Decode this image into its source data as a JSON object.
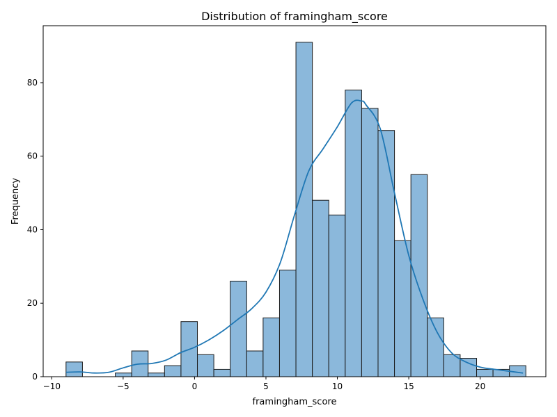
{
  "chart_data": {
    "type": "histogram",
    "title": "Distribution of framingham_score",
    "xlabel": "framingham_score",
    "ylabel": "Frequency",
    "xlim": [
      -10.6,
      24.6
    ],
    "ylim": [
      0,
      95.5
    ],
    "xticks": [
      -10,
      -5,
      0,
      5,
      10,
      15,
      20
    ],
    "yticks": [
      0,
      20,
      40,
      60,
      80
    ],
    "grid": false,
    "bin_edges": [
      -9.0,
      -7.85,
      -6.7,
      -5.55,
      -4.4,
      -3.25,
      -2.1,
      -0.95,
      0.2,
      1.35,
      2.5,
      3.65,
      4.8,
      5.95,
      7.1,
      8.25,
      9.4,
      10.55,
      11.7,
      12.85,
      14.0,
      15.15,
      16.3,
      17.45,
      18.6,
      19.75,
      20.9,
      22.05,
      23.2
    ],
    "counts": [
      4,
      0,
      0,
      1,
      7,
      1,
      3,
      15,
      6,
      2,
      26,
      7,
      16,
      29,
      91,
      48,
      44,
      78,
      73,
      67,
      37,
      55,
      16,
      6,
      5,
      2,
      2,
      3
    ],
    "kde": {
      "x": [
        -9,
        -8,
        -7,
        -6,
        -5,
        -4,
        -3,
        -2,
        -1,
        0,
        1,
        2,
        3,
        4,
        5,
        6,
        7,
        8,
        9,
        10,
        11,
        11.7,
        12,
        13,
        14,
        15,
        16,
        17,
        18,
        19,
        20,
        21,
        22,
        23
      ],
      "y": [
        1.2,
        1.3,
        1.0,
        1.2,
        2.4,
        3.4,
        3.6,
        4.5,
        6.5,
        8.0,
        10.0,
        12.5,
        15.5,
        18.5,
        23.0,
        31.0,
        44.0,
        56.0,
        62.0,
        68.0,
        74.5,
        75.0,
        74.0,
        67.5,
        50.0,
        33.0,
        21.0,
        12.0,
        6.5,
        4.0,
        2.6,
        2.0,
        1.5,
        1.0
      ]
    },
    "colors": {
      "bar_fill": "#8bb8db",
      "bar_edge": "#1a1a1a",
      "kde_line": "#1f77b4"
    }
  }
}
